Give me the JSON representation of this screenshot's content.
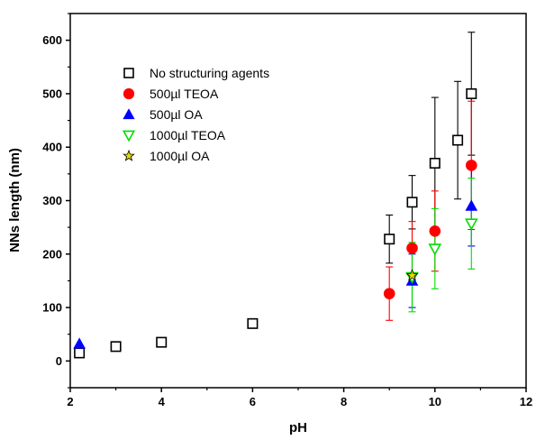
{
  "chart_data": {
    "type": "scatter",
    "title": "",
    "xlabel": "pH",
    "ylabel": "NNs length (nm)",
    "xlim": [
      2,
      12
    ],
    "ylim": [
      -50,
      650
    ],
    "xticks": [
      2,
      4,
      6,
      8,
      10,
      12
    ],
    "yticks": [
      0,
      100,
      200,
      300,
      400,
      500,
      600
    ],
    "grid": false,
    "legend_position": "top-left",
    "series": [
      {
        "name": "No structuring agents",
        "marker": "square-open",
        "color": "#000000",
        "points": [
          {
            "x": 2.2,
            "y": 15,
            "err": 0
          },
          {
            "x": 3.0,
            "y": 27,
            "err": 0
          },
          {
            "x": 4.0,
            "y": 35,
            "err": 0
          },
          {
            "x": 6.0,
            "y": 70,
            "err": 0
          },
          {
            "x": 9.0,
            "y": 228,
            "err": 45
          },
          {
            "x": 9.5,
            "y": 297,
            "err": 50
          },
          {
            "x": 10.0,
            "y": 370,
            "err": 123
          },
          {
            "x": 10.5,
            "y": 413,
            "err": 110
          },
          {
            "x": 10.8,
            "y": 500,
            "err": 115
          }
        ]
      },
      {
        "name": "500µl TEOA",
        "marker": "circle-filled",
        "color": "#ff0000",
        "points": [
          {
            "x": 9.0,
            "y": 126,
            "err": 50
          },
          {
            "x": 9.5,
            "y": 211,
            "err": 50
          },
          {
            "x": 10.0,
            "y": 243,
            "err": 75
          },
          {
            "x": 10.8,
            "y": 366,
            "err": 120
          }
        ]
      },
      {
        "name": "500µl OA",
        "marker": "triangle-up-filled",
        "color": "#0000ff",
        "points": [
          {
            "x": 2.2,
            "y": 32,
            "err": 0
          },
          {
            "x": 9.5,
            "y": 150,
            "err": 50
          },
          {
            "x": 10.8,
            "y": 290,
            "err": 75
          }
        ]
      },
      {
        "name": "1000µl TEOA",
        "marker": "triangle-down-open",
        "color": "#00dd00",
        "points": [
          {
            "x": 9.5,
            "y": 157,
            "err": 65
          },
          {
            "x": 10.0,
            "y": 210,
            "err": 75
          },
          {
            "x": 10.8,
            "y": 257,
            "err": 85
          }
        ]
      },
      {
        "name": "1000µl OA",
        "marker": "star-filled",
        "color": "#e6d800",
        "points": [
          {
            "x": 9.5,
            "y": 160,
            "err": 0
          }
        ]
      }
    ]
  }
}
